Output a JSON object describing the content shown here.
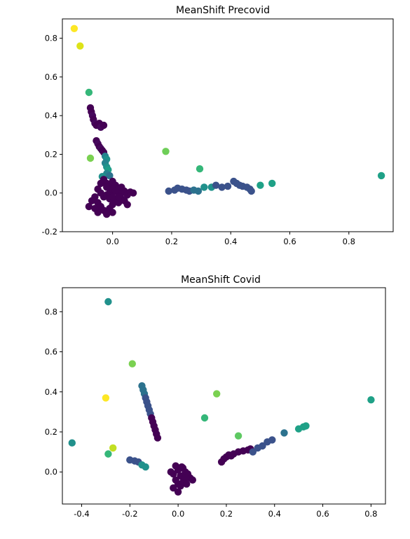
{
  "chart_data": [
    {
      "type": "scatter",
      "title": "MeanShift Precovid",
      "xlabel": "",
      "ylabel": "",
      "xlim": [
        -0.17,
        0.95
      ],
      "ylim": [
        -0.2,
        0.9
      ],
      "xticks": [
        0.0,
        0.2,
        0.4,
        0.6,
        0.8
      ],
      "xtick_labels": [
        "0.0",
        "0.2",
        "0.4",
        "0.6",
        "0.8"
      ],
      "yticks": [
        -0.2,
        0.0,
        0.2,
        0.4,
        0.6,
        0.8
      ],
      "ytick_labels": [
        "-0.2",
        "0.0",
        "0.2",
        "0.4",
        "0.6",
        "0.8"
      ],
      "grid": false,
      "colormap": "viridis",
      "points": [
        {
          "x": -0.13,
          "y": 0.85,
          "c": "#fde725"
        },
        {
          "x": -0.11,
          "y": 0.76,
          "c": "#dde318"
        },
        {
          "x": -0.08,
          "y": 0.52,
          "c": "#35b779"
        },
        {
          "x": -0.075,
          "y": 0.18,
          "c": "#7ad151"
        },
        {
          "x": 0.18,
          "y": 0.215,
          "c": "#6ece58"
        },
        {
          "x": 0.295,
          "y": 0.125,
          "c": "#35b779"
        },
        {
          "x": 0.91,
          "y": 0.09,
          "c": "#1fa187"
        },
        {
          "x": -0.075,
          "y": 0.44,
          "c": "#440154"
        },
        {
          "x": -0.072,
          "y": 0.42,
          "c": "#440154"
        },
        {
          "x": -0.068,
          "y": 0.4,
          "c": "#46085c"
        },
        {
          "x": -0.065,
          "y": 0.38,
          "c": "#440154"
        },
        {
          "x": -0.06,
          "y": 0.36,
          "c": "#46085c"
        },
        {
          "x": -0.055,
          "y": 0.35,
          "c": "#440154"
        },
        {
          "x": -0.045,
          "y": 0.36,
          "c": "#440154"
        },
        {
          "x": -0.04,
          "y": 0.34,
          "c": "#46085c"
        },
        {
          "x": -0.03,
          "y": 0.35,
          "c": "#440154"
        },
        {
          "x": -0.055,
          "y": 0.27,
          "c": "#440154"
        },
        {
          "x": -0.05,
          "y": 0.255,
          "c": "#46085c"
        },
        {
          "x": -0.045,
          "y": 0.24,
          "c": "#440154"
        },
        {
          "x": -0.04,
          "y": 0.23,
          "c": "#46085c"
        },
        {
          "x": -0.035,
          "y": 0.22,
          "c": "#440154"
        },
        {
          "x": -0.03,
          "y": 0.21,
          "c": "#440154"
        },
        {
          "x": -0.025,
          "y": 0.19,
          "c": "#26828e"
        },
        {
          "x": -0.02,
          "y": 0.175,
          "c": "#21918c"
        },
        {
          "x": -0.025,
          "y": 0.155,
          "c": "#26828e"
        },
        {
          "x": -0.02,
          "y": 0.135,
          "c": "#21918c"
        },
        {
          "x": -0.015,
          "y": 0.12,
          "c": "#1f9e89"
        },
        {
          "x": -0.02,
          "y": 0.1,
          "c": "#26828e"
        },
        {
          "x": -0.035,
          "y": 0.085,
          "c": "#21918c"
        },
        {
          "x": -0.01,
          "y": 0.09,
          "c": "#2c728e"
        },
        {
          "x": -0.05,
          "y": 0.02,
          "c": "#440154"
        },
        {
          "x": -0.04,
          "y": 0.05,
          "c": "#440154"
        },
        {
          "x": -0.03,
          "y": 0.07,
          "c": "#440154"
        },
        {
          "x": -0.02,
          "y": 0.05,
          "c": "#440154"
        },
        {
          "x": -0.01,
          "y": 0.03,
          "c": "#440154"
        },
        {
          "x": 0.0,
          "y": 0.06,
          "c": "#440154"
        },
        {
          "x": 0.01,
          "y": 0.04,
          "c": "#440154"
        },
        {
          "x": 0.02,
          "y": 0.02,
          "c": "#440154"
        },
        {
          "x": 0.03,
          "y": 0.0,
          "c": "#440154"
        },
        {
          "x": 0.04,
          "y": 0.01,
          "c": "#440154"
        },
        {
          "x": 0.05,
          "y": -0.01,
          "c": "#440154"
        },
        {
          "x": 0.06,
          "y": 0.005,
          "c": "#440154"
        },
        {
          "x": 0.07,
          "y": 0.0,
          "c": "#440154"
        },
        {
          "x": -0.06,
          "y": -0.02,
          "c": "#440154"
        },
        {
          "x": -0.07,
          "y": -0.04,
          "c": "#440154"
        },
        {
          "x": -0.08,
          "y": -0.07,
          "c": "#440154"
        },
        {
          "x": -0.05,
          "y": -0.05,
          "c": "#440154"
        },
        {
          "x": -0.04,
          "y": -0.07,
          "c": "#440154"
        },
        {
          "x": -0.03,
          "y": -0.09,
          "c": "#440154"
        },
        {
          "x": -0.05,
          "y": -0.1,
          "c": "#440154"
        },
        {
          "x": -0.02,
          "y": -0.11,
          "c": "#440154"
        },
        {
          "x": -0.01,
          "y": -0.08,
          "c": "#440154"
        },
        {
          "x": 0.0,
          "y": -0.06,
          "c": "#440154"
        },
        {
          "x": 0.01,
          "y": -0.04,
          "c": "#440154"
        },
        {
          "x": 0.02,
          "y": -0.05,
          "c": "#440154"
        },
        {
          "x": 0.03,
          "y": -0.03,
          "c": "#440154"
        },
        {
          "x": 0.04,
          "y": -0.04,
          "c": "#440154"
        },
        {
          "x": -0.03,
          "y": -0.02,
          "c": "#440154"
        },
        {
          "x": -0.02,
          "y": -0.01,
          "c": "#440154"
        },
        {
          "x": -0.01,
          "y": 0.0,
          "c": "#440154"
        },
        {
          "x": 0.0,
          "y": 0.02,
          "c": "#440154"
        },
        {
          "x": 0.01,
          "y": 0.01,
          "c": "#440154"
        },
        {
          "x": -0.01,
          "y": -0.03,
          "c": "#440154"
        },
        {
          "x": 0.0,
          "y": -0.02,
          "c": "#440154"
        },
        {
          "x": 0.02,
          "y": -0.02,
          "c": "#440154"
        },
        {
          "x": -0.04,
          "y": 0.0,
          "c": "#440154"
        },
        {
          "x": -0.06,
          "y": -0.08,
          "c": "#440154"
        },
        {
          "x": 0.0,
          "y": -0.1,
          "c": "#440154"
        },
        {
          "x": 0.05,
          "y": -0.06,
          "c": "#440154"
        },
        {
          "x": -0.02,
          "y": 0.03,
          "c": "#440154"
        },
        {
          "x": 0.03,
          "y": 0.03,
          "c": "#440154"
        },
        {
          "x": 0.19,
          "y": 0.01,
          "c": "#3b528b"
        },
        {
          "x": 0.21,
          "y": 0.015,
          "c": "#3b528b"
        },
        {
          "x": 0.22,
          "y": 0.025,
          "c": "#3b528b"
        },
        {
          "x": 0.235,
          "y": 0.02,
          "c": "#3b528b"
        },
        {
          "x": 0.25,
          "y": 0.015,
          "c": "#3b528b"
        },
        {
          "x": 0.26,
          "y": 0.01,
          "c": "#3b528b"
        },
        {
          "x": 0.275,
          "y": 0.015,
          "c": "#2c728e"
        },
        {
          "x": 0.29,
          "y": 0.01,
          "c": "#2c728e"
        },
        {
          "x": 0.31,
          "y": 0.03,
          "c": "#21918c"
        },
        {
          "x": 0.335,
          "y": 0.03,
          "c": "#21918c"
        },
        {
          "x": 0.35,
          "y": 0.04,
          "c": "#3b528b"
        },
        {
          "x": 0.37,
          "y": 0.03,
          "c": "#3b528b"
        },
        {
          "x": 0.39,
          "y": 0.035,
          "c": "#3b528b"
        },
        {
          "x": 0.41,
          "y": 0.06,
          "c": "#3b528b"
        },
        {
          "x": 0.42,
          "y": 0.05,
          "c": "#3b528b"
        },
        {
          "x": 0.43,
          "y": 0.04,
          "c": "#3b528b"
        },
        {
          "x": 0.44,
          "y": 0.035,
          "c": "#3b528b"
        },
        {
          "x": 0.455,
          "y": 0.03,
          "c": "#3b528b"
        },
        {
          "x": 0.465,
          "y": 0.02,
          "c": "#3b528b"
        },
        {
          "x": 0.47,
          "y": 0.01,
          "c": "#3b528b"
        },
        {
          "x": 0.5,
          "y": 0.04,
          "c": "#1fa187"
        },
        {
          "x": 0.54,
          "y": 0.05,
          "c": "#1fa187"
        }
      ]
    },
    {
      "type": "scatter",
      "title": "MeanShift Covid",
      "xlabel": "",
      "ylabel": "",
      "xlim": [
        -0.48,
        0.86
      ],
      "ylim": [
        -0.16,
        0.92
      ],
      "xticks": [
        -0.4,
        -0.2,
        0.0,
        0.2,
        0.4,
        0.6,
        0.8
      ],
      "xtick_labels": [
        "-0.4",
        "-0.2",
        "0.0",
        "0.2",
        "0.4",
        "0.6",
        "0.8"
      ],
      "yticks": [
        0.0,
        0.2,
        0.4,
        0.6,
        0.8
      ],
      "ytick_labels": [
        "0.0",
        "0.2",
        "0.4",
        "0.6",
        "0.8"
      ],
      "grid": false,
      "colormap": "viridis",
      "points": [
        {
          "x": -0.29,
          "y": 0.85,
          "c": "#21918c"
        },
        {
          "x": -0.19,
          "y": 0.54,
          "c": "#7ad151"
        },
        {
          "x": -0.3,
          "y": 0.37,
          "c": "#fde725"
        },
        {
          "x": -0.27,
          "y": 0.12,
          "c": "#c2df23"
        },
        {
          "x": -0.29,
          "y": 0.09,
          "c": "#35b779"
        },
        {
          "x": -0.44,
          "y": 0.145,
          "c": "#21918c"
        },
        {
          "x": 0.16,
          "y": 0.39,
          "c": "#7ad151"
        },
        {
          "x": 0.11,
          "y": 0.27,
          "c": "#35b779"
        },
        {
          "x": 0.25,
          "y": 0.18,
          "c": "#5ec962"
        },
        {
          "x": 0.8,
          "y": 0.36,
          "c": "#1fa187"
        },
        {
          "x": 0.44,
          "y": 0.195,
          "c": "#2c728e"
        },
        {
          "x": -0.15,
          "y": 0.43,
          "c": "#2c728e"
        },
        {
          "x": -0.145,
          "y": 0.41,
          "c": "#2c728e"
        },
        {
          "x": -0.14,
          "y": 0.39,
          "c": "#2c728e"
        },
        {
          "x": -0.135,
          "y": 0.37,
          "c": "#3b528b"
        },
        {
          "x": -0.13,
          "y": 0.35,
          "c": "#3b528b"
        },
        {
          "x": -0.125,
          "y": 0.33,
          "c": "#3b528b"
        },
        {
          "x": -0.12,
          "y": 0.31,
          "c": "#3b528b"
        },
        {
          "x": -0.115,
          "y": 0.29,
          "c": "#3b528b"
        },
        {
          "x": -0.11,
          "y": 0.27,
          "c": "#440154"
        },
        {
          "x": -0.105,
          "y": 0.25,
          "c": "#440154"
        },
        {
          "x": -0.1,
          "y": 0.23,
          "c": "#440154"
        },
        {
          "x": -0.095,
          "y": 0.21,
          "c": "#440154"
        },
        {
          "x": -0.09,
          "y": 0.19,
          "c": "#440154"
        },
        {
          "x": -0.085,
          "y": 0.17,
          "c": "#440154"
        },
        {
          "x": -0.2,
          "y": 0.06,
          "c": "#3b528b"
        },
        {
          "x": -0.18,
          "y": 0.055,
          "c": "#3b528b"
        },
        {
          "x": -0.165,
          "y": 0.05,
          "c": "#3b528b"
        },
        {
          "x": -0.15,
          "y": 0.035,
          "c": "#21918c"
        },
        {
          "x": -0.135,
          "y": 0.025,
          "c": "#21918c"
        },
        {
          "x": 0.0,
          "y": 0.01,
          "c": "#440154"
        },
        {
          "x": -0.01,
          "y": 0.03,
          "c": "#440154"
        },
        {
          "x": 0.02,
          "y": 0.02,
          "c": "#440154"
        },
        {
          "x": 0.03,
          "y": 0.0,
          "c": "#440154"
        },
        {
          "x": -0.02,
          "y": -0.01,
          "c": "#440154"
        },
        {
          "x": 0.01,
          "y": -0.02,
          "c": "#440154"
        },
        {
          "x": 0.04,
          "y": -0.01,
          "c": "#440154"
        },
        {
          "x": 0.05,
          "y": -0.03,
          "c": "#440154"
        },
        {
          "x": 0.06,
          "y": -0.04,
          "c": "#440154"
        },
        {
          "x": -0.01,
          "y": -0.04,
          "c": "#440154"
        },
        {
          "x": 0.0,
          "y": -0.06,
          "c": "#440154"
        },
        {
          "x": 0.01,
          "y": -0.07,
          "c": "#440154"
        },
        {
          "x": -0.02,
          "y": -0.08,
          "c": "#440154"
        },
        {
          "x": 0.0,
          "y": -0.1,
          "c": "#440154"
        },
        {
          "x": 0.02,
          "y": -0.05,
          "c": "#440154"
        },
        {
          "x": 0.03,
          "y": -0.03,
          "c": "#440154"
        },
        {
          "x": -0.03,
          "y": 0.0,
          "c": "#440154"
        },
        {
          "x": 0.015,
          "y": 0.025,
          "c": "#440154"
        },
        {
          "x": 0.035,
          "y": -0.06,
          "c": "#440154"
        },
        {
          "x": 0.18,
          "y": 0.05,
          "c": "#440154"
        },
        {
          "x": 0.19,
          "y": 0.065,
          "c": "#440154"
        },
        {
          "x": 0.2,
          "y": 0.075,
          "c": "#440154"
        },
        {
          "x": 0.21,
          "y": 0.085,
          "c": "#440154"
        },
        {
          "x": 0.22,
          "y": 0.08,
          "c": "#440154"
        },
        {
          "x": 0.23,
          "y": 0.09,
          "c": "#440154"
        },
        {
          "x": 0.25,
          "y": 0.1,
          "c": "#440154"
        },
        {
          "x": 0.27,
          "y": 0.105,
          "c": "#440154"
        },
        {
          "x": 0.29,
          "y": 0.11,
          "c": "#440154"
        },
        {
          "x": 0.3,
          "y": 0.115,
          "c": "#440154"
        },
        {
          "x": 0.31,
          "y": 0.1,
          "c": "#3b528b"
        },
        {
          "x": 0.33,
          "y": 0.12,
          "c": "#3b528b"
        },
        {
          "x": 0.35,
          "y": 0.13,
          "c": "#3b528b"
        },
        {
          "x": 0.37,
          "y": 0.15,
          "c": "#3b528b"
        },
        {
          "x": 0.39,
          "y": 0.16,
          "c": "#3b528b"
        },
        {
          "x": 0.5,
          "y": 0.215,
          "c": "#1fa187"
        },
        {
          "x": 0.52,
          "y": 0.225,
          "c": "#1fa187"
        },
        {
          "x": 0.53,
          "y": 0.23,
          "c": "#1fa187"
        }
      ]
    }
  ]
}
